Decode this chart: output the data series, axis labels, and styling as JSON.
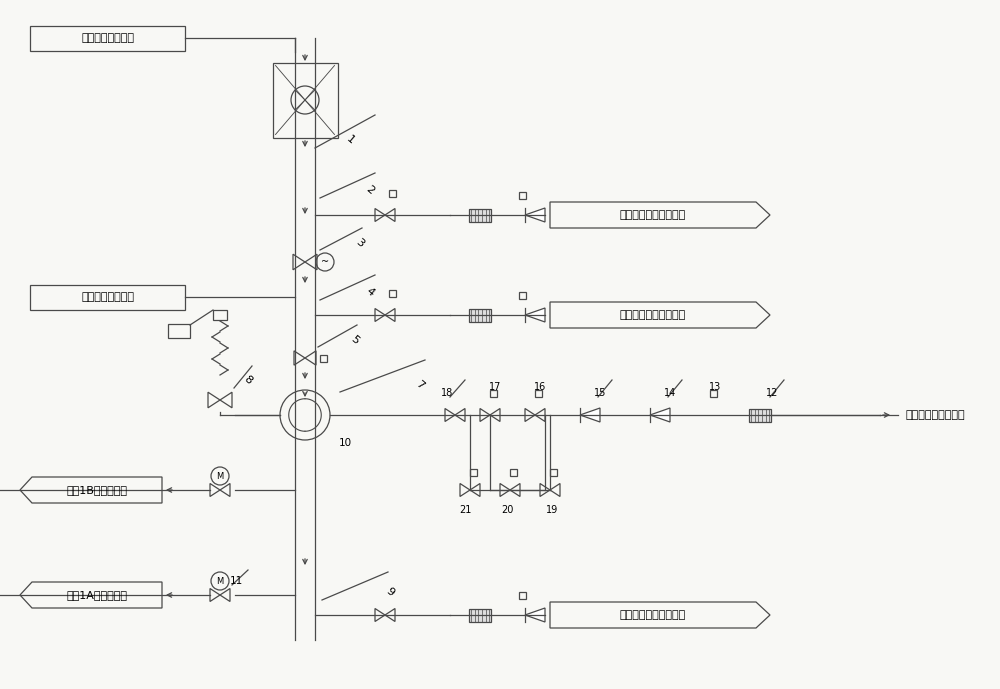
{
  "bg_color": "#f8f8f5",
  "line_color": "#4a4a4a",
  "lw": 0.9,
  "label_top1": "高压缸补汽口来汽",
  "label_top2": "高压缸补汽口来汽",
  "label_r1": "补汽阀后疏水至凝汽器",
  "label_r2": "电动阀后疏水至凝汽器",
  "label_r3": "来泵再热器减温水来",
  "label_r4": "减温器后疏水至凝汽器",
  "label_l1": "接入1B高压加热器",
  "label_l2": "接入1A高压加热器"
}
